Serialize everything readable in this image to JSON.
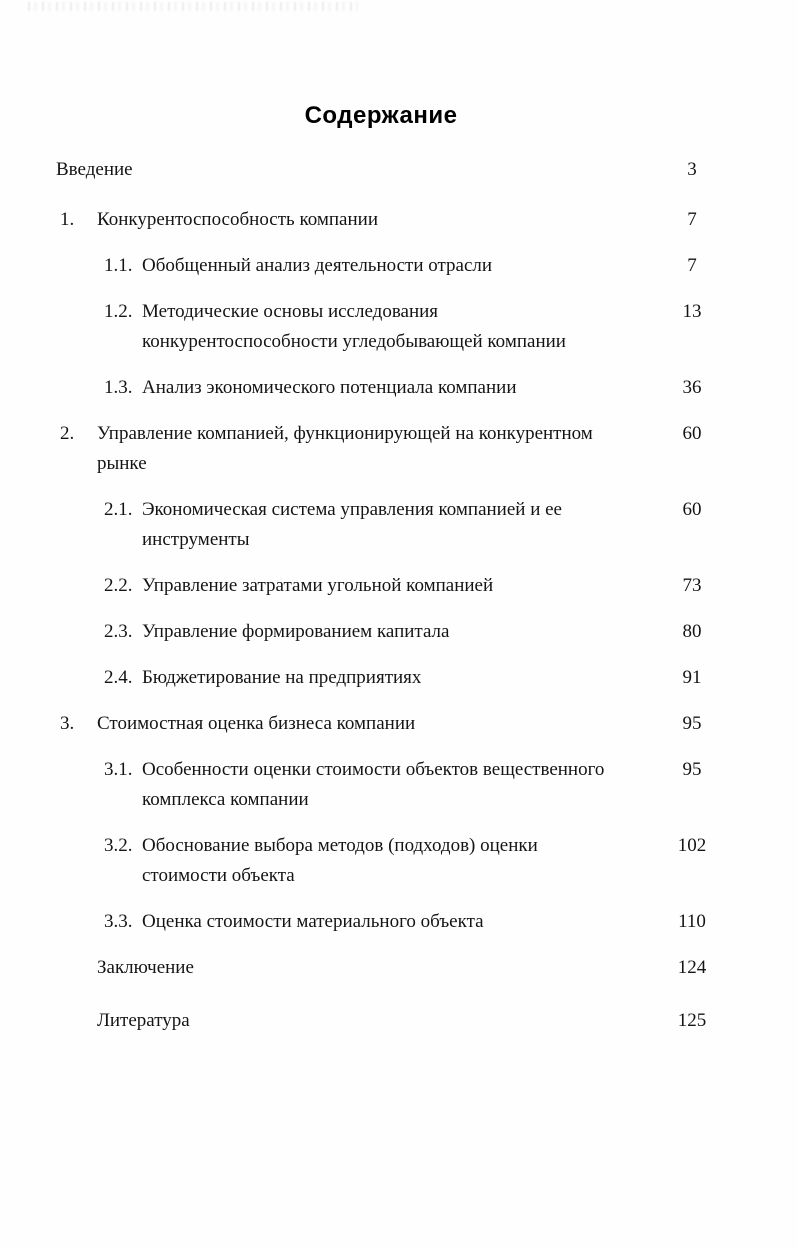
{
  "page": {
    "title": "Содержание",
    "entries": [
      {
        "level": "intro",
        "number": "",
        "title": "Введение",
        "page": "3"
      },
      {
        "level": "chapter",
        "number": "1.",
        "title": "Конкурентоспособность компании",
        "page": "7"
      },
      {
        "level": "section",
        "number": "1.1.",
        "title": "Обобщенный анализ деятельности отрасли",
        "page": "7"
      },
      {
        "level": "section",
        "number": "1.2.",
        "title": "Методические основы исследования конкурентоспособности угледобывающей компании",
        "page": "13"
      },
      {
        "level": "section",
        "number": "1.3.",
        "title": "Анализ экономического потенциала компании",
        "page": "36"
      },
      {
        "level": "chapter",
        "number": "2.",
        "title": "Управление компанией, функционирующей на конкурентном рынке",
        "page": "60"
      },
      {
        "level": "section",
        "number": "2.1.",
        "title": "Экономическая система управления компанией и ее инструменты",
        "page": "60"
      },
      {
        "level": "section",
        "number": "2.2.",
        "title": "Управление затратами угольной компанией",
        "page": "73"
      },
      {
        "level": "section",
        "number": "2.3.",
        "title": "Управление формированием капитала",
        "page": "80"
      },
      {
        "level": "section",
        "number": "2.4.",
        "title": "Бюджетирование на предприятиях",
        "page": "91"
      },
      {
        "level": "chapter",
        "number": "3.",
        "title": "Стоимостная оценка бизнеса компании",
        "page": "95"
      },
      {
        "level": "section",
        "number": "3.1.",
        "title": "Особенности оценки стоимости объектов вещественного комплекса компании",
        "page": "95"
      },
      {
        "level": "section",
        "number": "3.2.",
        "title": "Обоснование выбора методов (подходов) оценки стоимости объекта",
        "page": "102"
      },
      {
        "level": "section",
        "number": "3.3.",
        "title": "Оценка стоимости материального объекта",
        "page": "110"
      },
      {
        "level": "outro",
        "number": "",
        "title": "Заключение",
        "page": "124"
      },
      {
        "level": "outro",
        "number": "",
        "title": "Литература",
        "page": "125"
      }
    ]
  }
}
